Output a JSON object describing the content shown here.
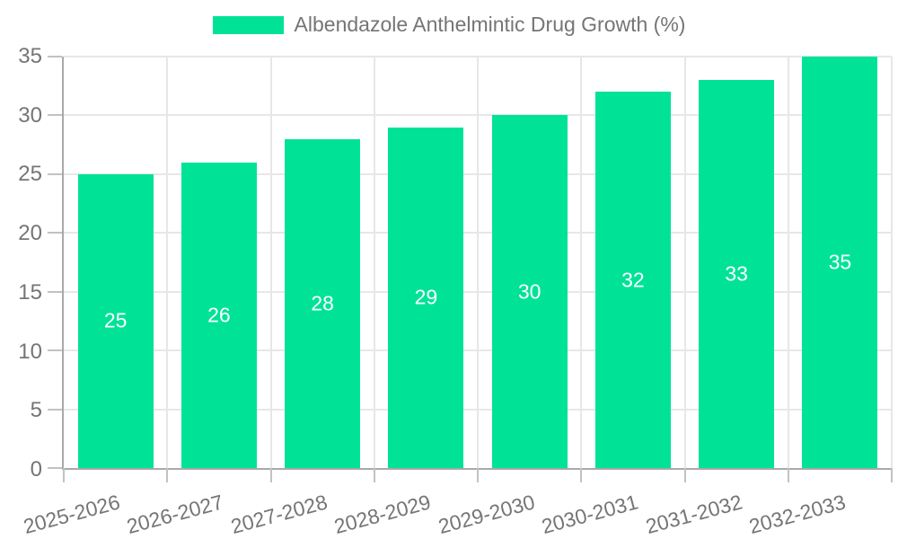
{
  "legend": {
    "label": "Albendazole Anthelmintic Drug Growth (%)"
  },
  "chart_data": {
    "type": "bar",
    "title": "Albendazole Anthelmintic Drug Growth (%)",
    "categories": [
      "2025-2026",
      "2026-2027",
      "2027-2028",
      "2028-2029",
      "2029-2030",
      "2030-2031",
      "2031-2032",
      "2032-2033"
    ],
    "values": [
      25,
      26,
      28,
      29,
      30,
      32,
      33,
      35
    ],
    "xlabel": "",
    "ylabel": "",
    "ylim": [
      0,
      35
    ],
    "ytick_step": 5,
    "ytick_labels": [
      "0",
      "5",
      "10",
      "15",
      "20",
      "25",
      "30",
      "35"
    ],
    "grid": true,
    "legend_position": "top",
    "bar_value_labels_shown": true
  },
  "colors": {
    "bar": "#00E396",
    "bar_value_label": "#ffffff",
    "axis_border": "#a9a9a9",
    "gridline": "#e7e7e7",
    "tick_mark": "#c2c2c2",
    "tick_label": "#757575",
    "background": "#ffffff"
  }
}
